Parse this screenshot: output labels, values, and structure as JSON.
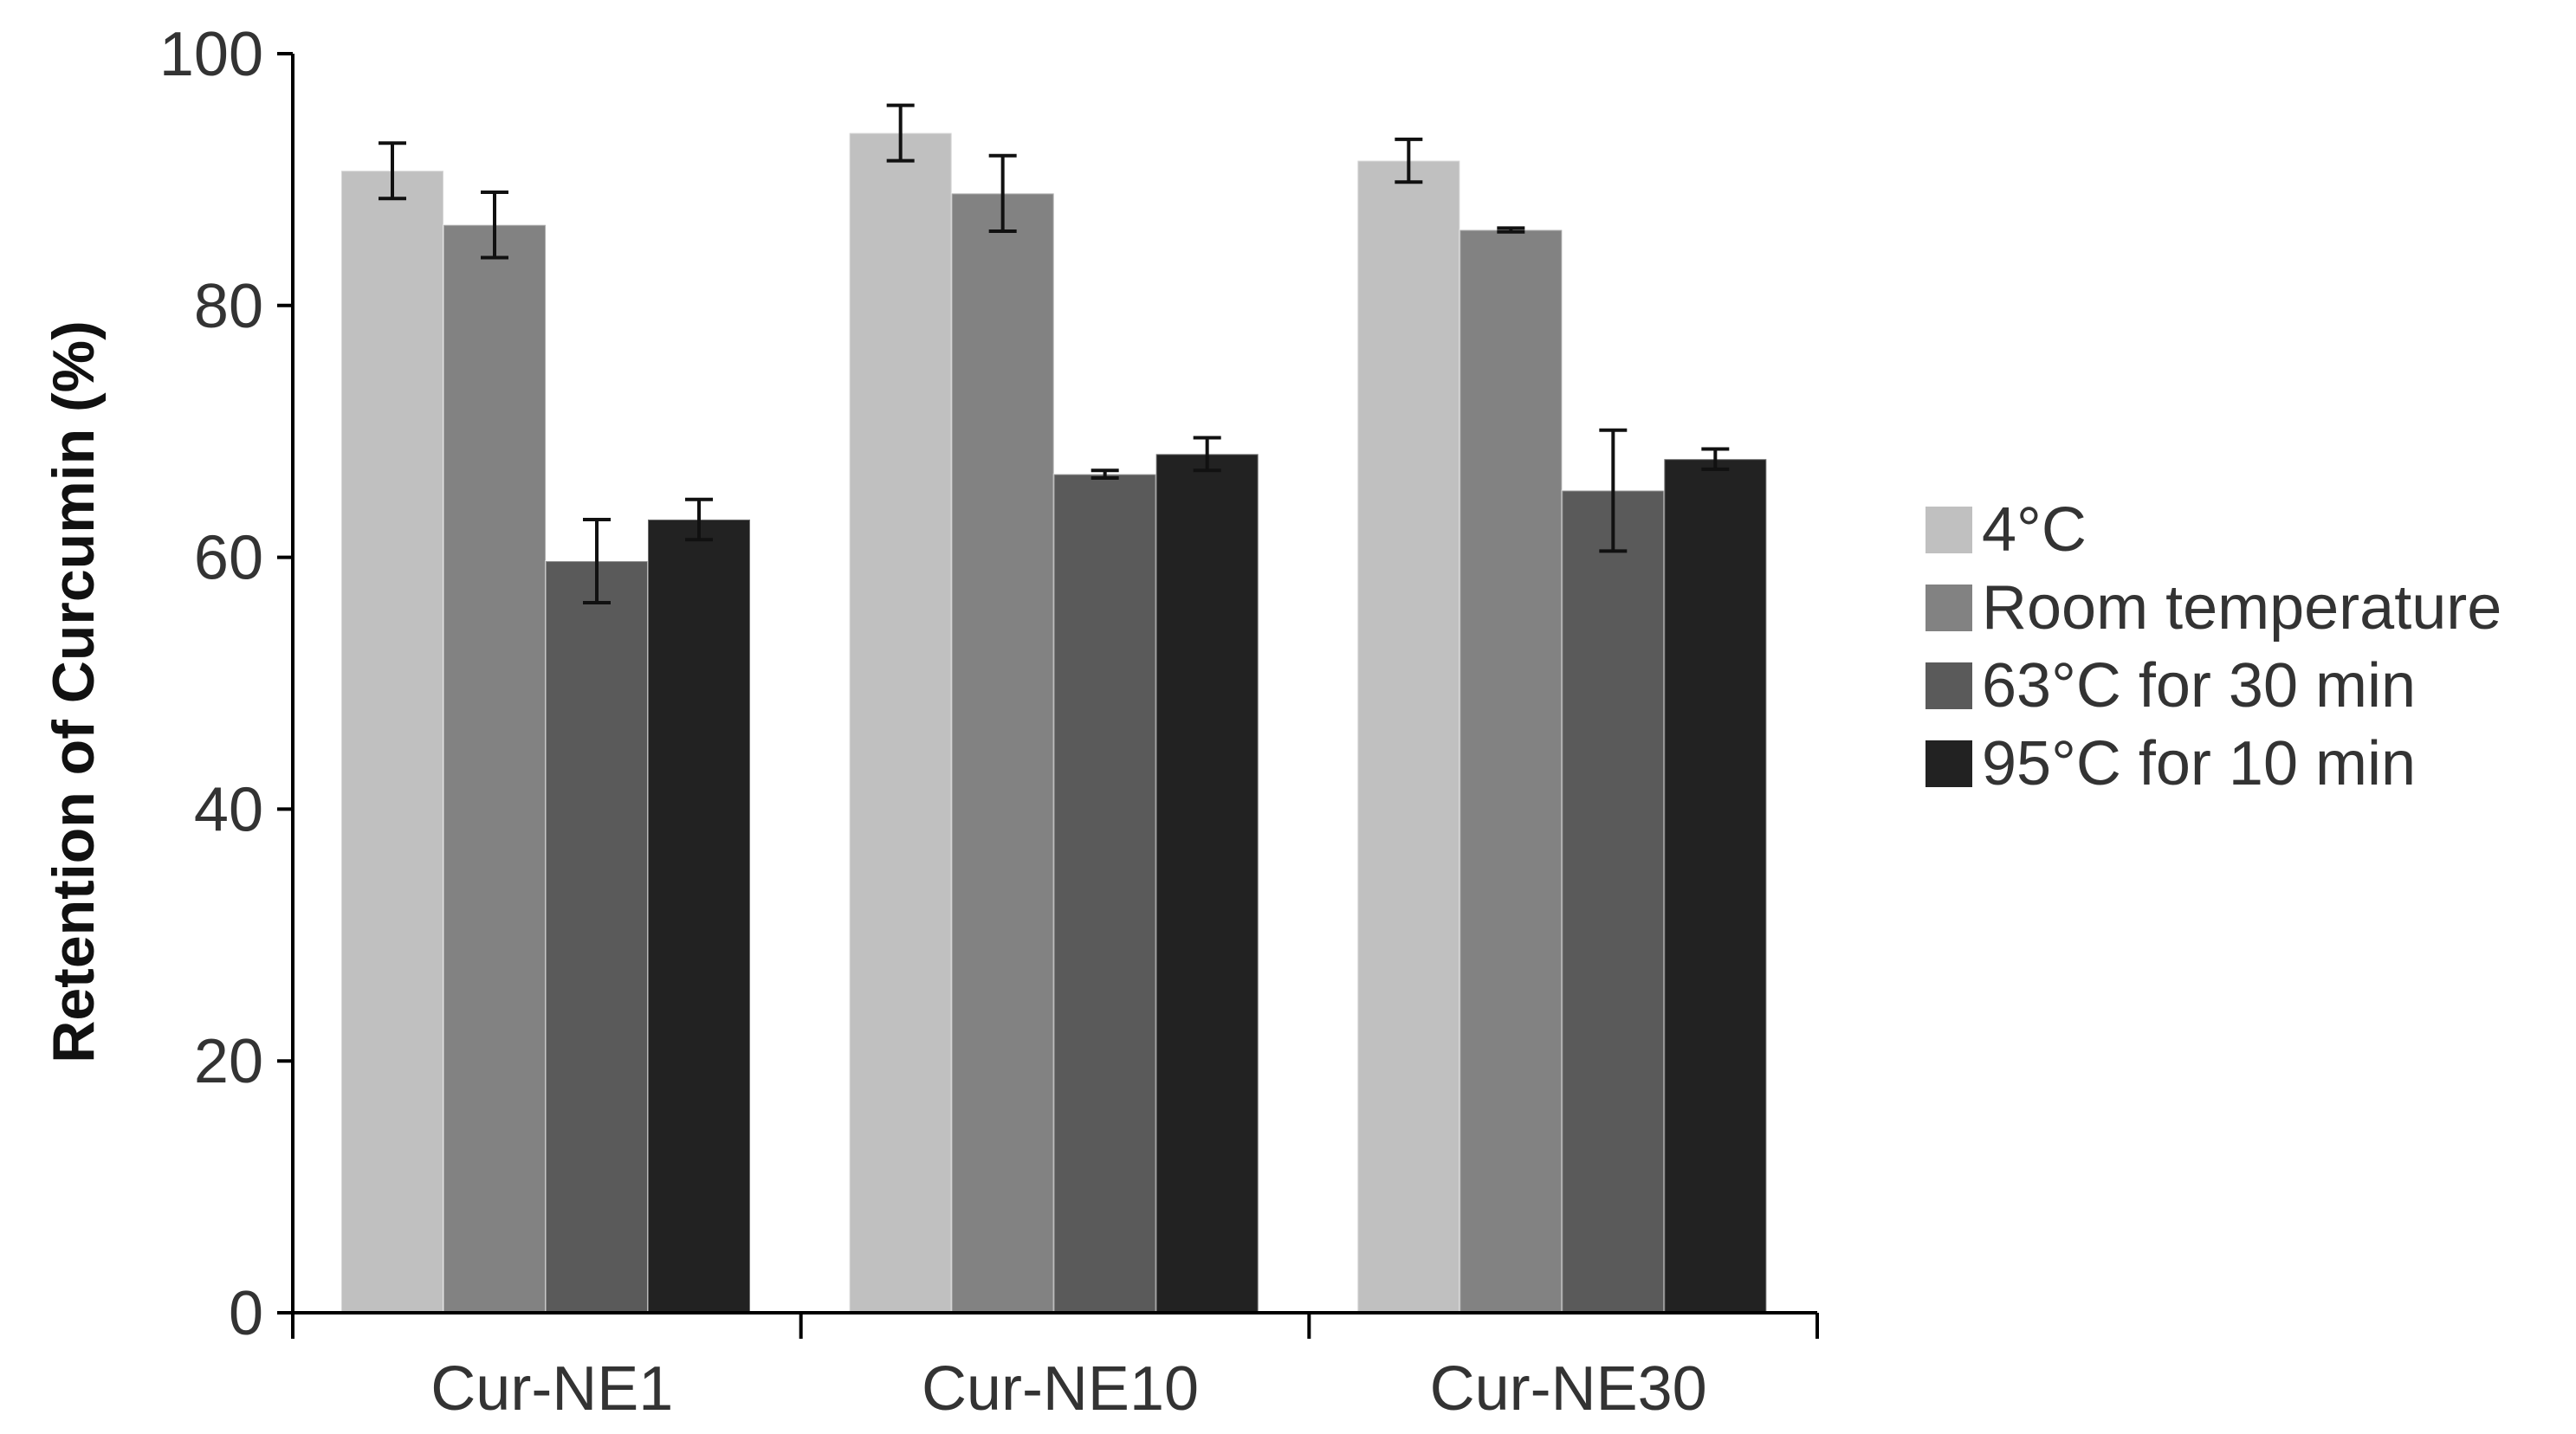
{
  "chart_data": {
    "type": "bar",
    "title": "",
    "xlabel": "",
    "ylabel": "Retention of Curcumin (%)",
    "ylim": [
      0,
      100
    ],
    "yticks": [
      "0",
      "20",
      "40",
      "60",
      "80",
      "100"
    ],
    "grid": false,
    "legend_position": "right",
    "categories": [
      "Cur-NE1",
      "Cur-NE10",
      "Cur-NE30"
    ],
    "series": [
      {
        "name": "4°C",
        "color": "#c0c0c0",
        "values": [
          90.7,
          93.7,
          91.5
        ],
        "errors": [
          2.2,
          2.2,
          1.7
        ]
      },
      {
        "name": "Room temperature",
        "color": "#828282",
        "values": [
          86.4,
          88.9,
          86.0
        ],
        "errors": [
          2.6,
          3.0,
          0.15
        ]
      },
      {
        "name": "63°C for 30 min",
        "color": "#5a5a5a",
        "values": [
          59.7,
          66.6,
          65.3
        ],
        "errors": [
          3.3,
          0.3,
          4.8
        ]
      },
      {
        "name": "95°C for 10 min",
        "color": "#222222",
        "values": [
          63.0,
          68.2,
          67.8
        ],
        "errors": [
          1.6,
          1.3,
          0.8
        ]
      }
    ]
  }
}
